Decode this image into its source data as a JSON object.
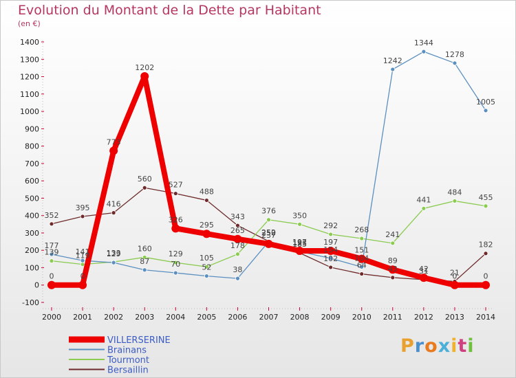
{
  "chart_data": {
    "type": "line",
    "title": "Evolution du Montant de la Dette par Habitant",
    "subtitle": "(en €)",
    "x": [
      "2000",
      "2001",
      "2002",
      "2003",
      "2004",
      "2005",
      "2006",
      "2007",
      "2008",
      "2009",
      "2010",
      "2011",
      "2012",
      "2013",
      "2014"
    ],
    "ylim": [
      -100,
      1400
    ],
    "yticks": [
      -100,
      0,
      100,
      200,
      300,
      400,
      500,
      600,
      700,
      800,
      900,
      1000,
      1100,
      1200,
      1300,
      1400
    ],
    "grid": false,
    "legend_position": "bottom-left",
    "series": [
      {
        "name": "VILLERSERINE",
        "color": "#ee0000",
        "values": [
          0,
          0,
          773,
          1202,
          326,
          295,
          265,
          237,
          197,
          197,
          151,
          89,
          42,
          0,
          0
        ]
      },
      {
        "name": "Brainans",
        "color": "#5b8fc0",
        "values": [
          177,
          141,
          129,
          87,
          70,
          52,
          38,
          250,
          193,
          154,
          104,
          1242,
          1344,
          1278,
          1005
        ]
      },
      {
        "name": "Tourmont",
        "color": "#8acb50",
        "values": [
          139,
          119,
          133,
          160,
          129,
          105,
          178,
          376,
          350,
          292,
          268,
          241,
          441,
          484,
          455
        ]
      },
      {
        "name": "Bersaillin",
        "color": "#6e2a2a",
        "values": [
          352,
          395,
          416,
          560,
          527,
          488,
          343,
          252,
          185,
          102,
          64,
          43,
          31,
          21,
          182
        ]
      }
    ]
  },
  "logo": {
    "letters": [
      "P",
      "r",
      "o",
      "x",
      "i",
      "t",
      "i"
    ]
  }
}
